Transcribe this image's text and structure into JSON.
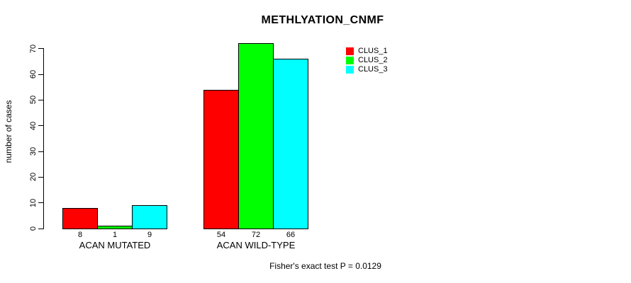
{
  "chart_data": {
    "type": "bar",
    "title": "METHLYATION_CNMF",
    "xlabel": "",
    "ylabel": "number of cases",
    "categories": [
      "ACAN MUTATED",
      "ACAN WILD-TYPE"
    ],
    "series": [
      {
        "name": "CLUS_1",
        "color": "#ff0000",
        "values": [
          8,
          54
        ]
      },
      {
        "name": "CLUS_2",
        "color": "#00ff00",
        "values": [
          1,
          72
        ]
      },
      {
        "name": "CLUS_3",
        "color": "#00ffff",
        "values": [
          9,
          66
        ]
      }
    ],
    "bar_value_labels": [
      [
        "8",
        "1",
        "9"
      ],
      [
        "54",
        "72",
        "66"
      ]
    ],
    "ylim": [
      0,
      70
    ],
    "yticks": [
      "0",
      "10",
      "20",
      "30",
      "40",
      "50",
      "60",
      "70"
    ],
    "grid": false,
    "legend_position": "top-right-inside",
    "bar_border_color": "#000000",
    "axis_color": "#000000"
  },
  "footer": {
    "note": "Fisher's exact test P = 0.0129"
  }
}
